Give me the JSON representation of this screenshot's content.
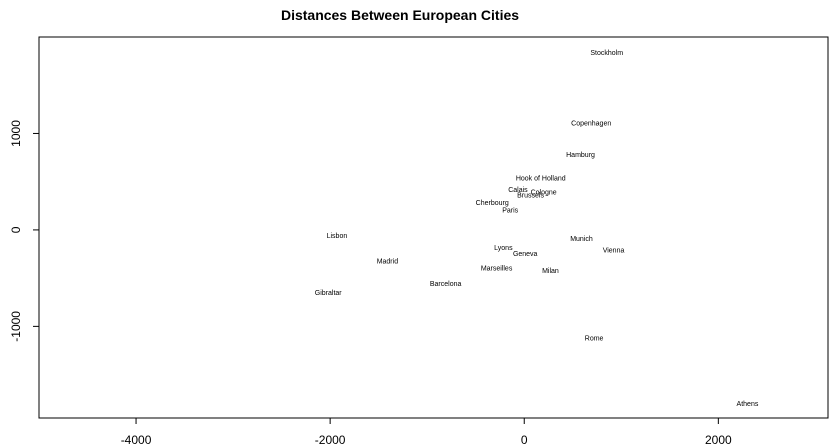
{
  "chart_data": {
    "type": "scatter",
    "title": "Distances Between European Cities",
    "xlabel": "",
    "ylabel": "",
    "xlim": [
      -5000,
      3130
    ],
    "ylim": [
      -1950,
      2000
    ],
    "x_ticks": [
      -4000,
      -2000,
      0,
      2000
    ],
    "x_tick_labels": [
      "-4000",
      "-2000",
      "0",
      "2000"
    ],
    "y_ticks": [
      -1000,
      0,
      1000
    ],
    "y_tick_labels": [
      "-1000",
      "0",
      "1000"
    ],
    "grid": false,
    "markers": "text-labels",
    "points": [
      {
        "label": "Stockholm",
        "x": 850,
        "y": 1840
      },
      {
        "label": "Copenhagen",
        "x": 690,
        "y": 1110
      },
      {
        "label": "Hamburg",
        "x": 580,
        "y": 780
      },
      {
        "label": "Hook of Holland",
        "x": 170,
        "y": 540
      },
      {
        "label": "Calais",
        "x": -65,
        "y": 420
      },
      {
        "label": "Cologne",
        "x": 200,
        "y": 395
      },
      {
        "label": "Brussels",
        "x": 65,
        "y": 360
      },
      {
        "label": "Cherbourg",
        "x": -330,
        "y": 285
      },
      {
        "label": "Paris",
        "x": -145,
        "y": 205
      },
      {
        "label": "Lisbon",
        "x": -1930,
        "y": -60
      },
      {
        "label": "Munich",
        "x": 590,
        "y": -90
      },
      {
        "label": "Lyons",
        "x": -215,
        "y": -180
      },
      {
        "label": "Vienna",
        "x": 920,
        "y": -210
      },
      {
        "label": "Geneva",
        "x": 10,
        "y": -245
      },
      {
        "label": "Madrid",
        "x": -1410,
        "y": -320
      },
      {
        "label": "Marseilles",
        "x": -285,
        "y": -395
      },
      {
        "label": "Milan",
        "x": 270,
        "y": -420
      },
      {
        "label": "Barcelona",
        "x": -810,
        "y": -555
      },
      {
        "label": "Gibraltar",
        "x": -2020,
        "y": -650
      },
      {
        "label": "Rome",
        "x": 720,
        "y": -1120
      },
      {
        "label": "Athens",
        "x": 2300,
        "y": -1800
      }
    ]
  }
}
